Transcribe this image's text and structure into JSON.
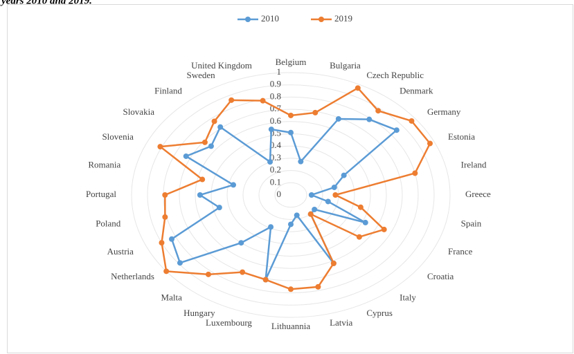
{
  "caption": "years 2010 and 2019.",
  "chart_data": {
    "type": "radar",
    "categories": [
      "Belgium",
      "Bulgaria",
      "Czech Republic",
      "Denmark",
      "Germany",
      "Estonia",
      "Ireland",
      "Greece",
      "Spain",
      "France",
      "Croatia",
      "Italy",
      "Cyprus",
      "Latvia",
      "Lithuannia",
      "Luxembourg",
      "Hungary",
      "Malta",
      "Netherlands",
      "Austria",
      "Poland",
      "Portugal",
      "Romania",
      "Slovenia",
      "Slovakia",
      "Finland",
      "Sweden",
      "United Kingdom"
    ],
    "series": [
      {
        "name": "2010",
        "color": "#5b9bd5",
        "values": [
          0.51,
          0.28,
          0.69,
          0.79,
          0.85,
          0.37,
          0.28,
          0.13,
          0.24,
          0.52,
          0.19,
          0.2,
          0.62,
          0.17,
          0.24,
          0.71,
          0.29,
          0.5,
          0.89,
          0.83,
          0.46,
          0.57,
          0.37,
          0.73,
          0.64,
          0.71,
          0.3,
          0.55
        ]
      },
      {
        "name": "2019",
        "color": "#ed7d31",
        "values": [
          0.65,
          0.69,
          0.97,
          0.88,
          0.97,
          0.97,
          0.8,
          0.28,
          0.45,
          0.65,
          0.55,
          0.2,
          0.62,
          0.77,
          0.77,
          0.71,
          0.7,
          0.83,
          1.0,
          0.9,
          0.81,
          0.79,
          0.57,
          0.91,
          0.69,
          0.77,
          0.86,
          0.79
        ]
      }
    ],
    "rlim": [
      0,
      1
    ],
    "rticks": [
      0,
      0.1,
      0.2,
      0.3,
      0.4,
      0.5,
      0.6,
      0.7,
      0.8,
      0.9,
      1
    ],
    "legend": "top"
  }
}
